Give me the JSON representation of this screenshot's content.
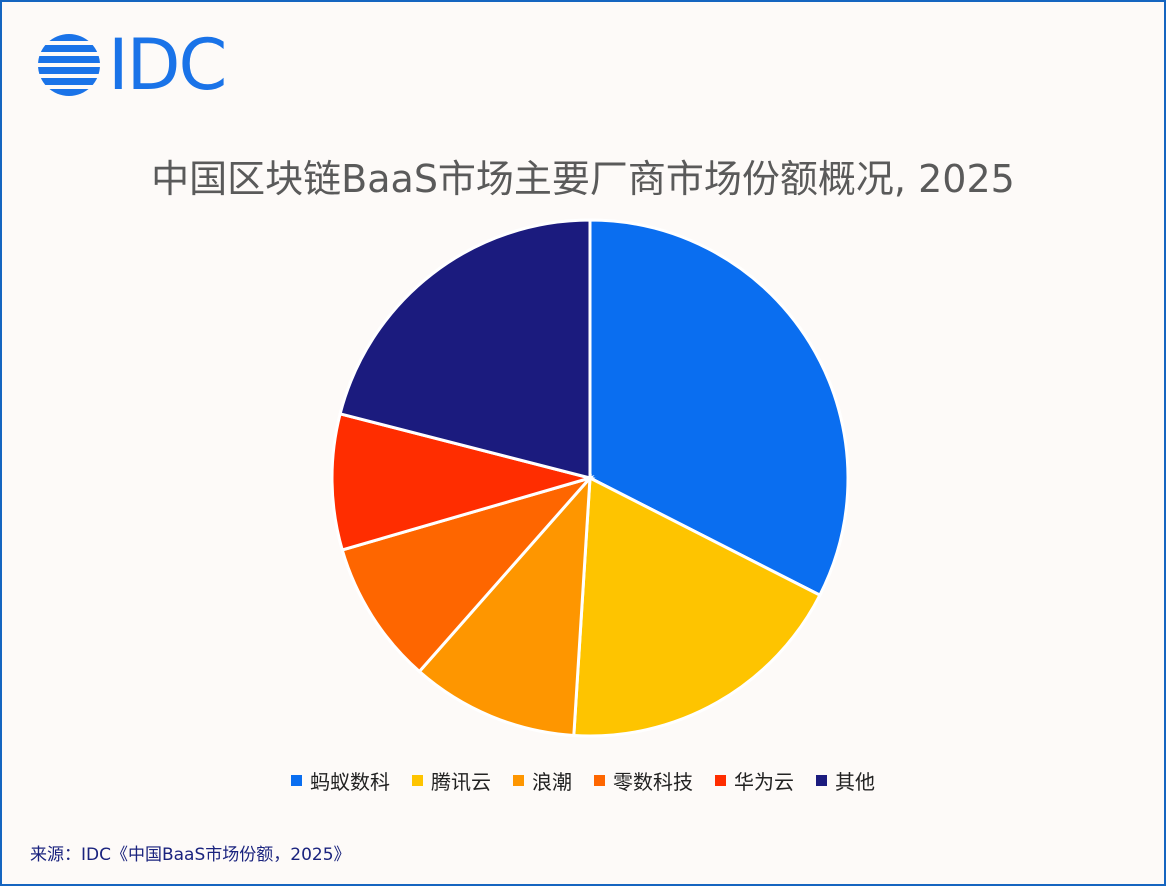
{
  "logo": {
    "text": "IDC",
    "color": "#1a73e8"
  },
  "source": "来源：IDC《中国BaaS市场份额，2025》",
  "chart_data": {
    "type": "pie",
    "title": "中国区块链BaaS市场主要厂商市场份额概况, 2025",
    "legend_position": "bottom",
    "categories": [
      "蚂蚁数科",
      "腾讯云",
      "浪潮",
      "零数科技",
      "华为云",
      "其他"
    ],
    "values": [
      32.5,
      18.5,
      10.5,
      9.0,
      8.5,
      21.0
    ],
    "colors": [
      "#0a6ef0",
      "#fec400",
      "#fe9600",
      "#fe6600",
      "#ff2d00",
      "#1b1b7e"
    ]
  }
}
